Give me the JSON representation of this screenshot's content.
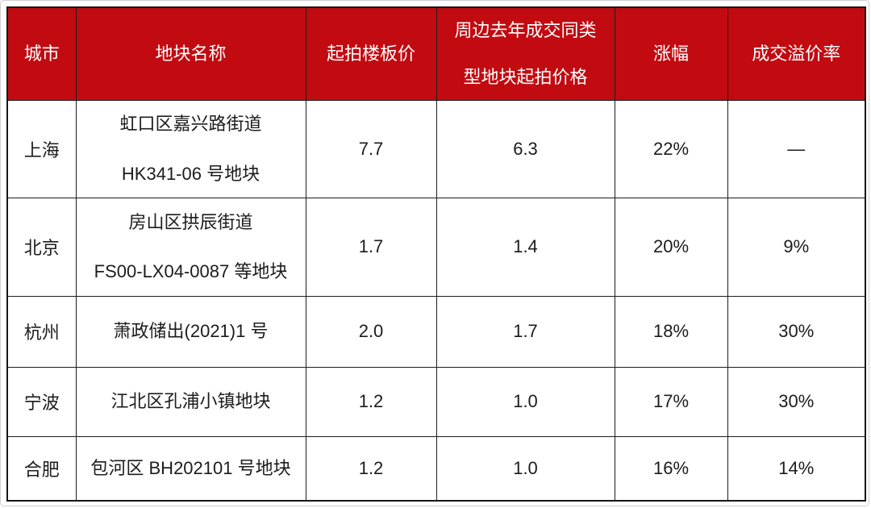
{
  "accent_color": "#C20B11",
  "header_text_color": "#FFFFFF",
  "body_text_color": "#1C1C1C",
  "table": {
    "header": [
      {
        "line1": "城市"
      },
      {
        "line1": "地块名称"
      },
      {
        "line1": "起拍楼板价"
      },
      {
        "line1": "周边去年成交同类",
        "line2": "型地块起拍价格"
      },
      {
        "line1": "涨幅"
      },
      {
        "line1": "成交溢价率"
      }
    ],
    "rows": [
      {
        "city": "上海",
        "plot_line1": "虹口区嘉兴路街道",
        "plot_line2": "HK341-06 号地块",
        "start_floor_price": "7.7",
        "nearby_last_year_price": "6.3",
        "increase": "22%",
        "premium_rate": "—"
      },
      {
        "city": "北京",
        "plot_line1": "房山区拱辰街道",
        "plot_line2": "FS00-LX04-0087 等地块",
        "start_floor_price": "1.7",
        "nearby_last_year_price": "1.4",
        "increase": "20%",
        "premium_rate": "9%"
      },
      {
        "city": "杭州",
        "plot_line1": "萧政储出(2021)1 号",
        "start_floor_price": "2.0",
        "nearby_last_year_price": "1.7",
        "increase": "18%",
        "premium_rate": "30%"
      },
      {
        "city": "宁波",
        "plot_line1": "江北区孔浦小镇地块",
        "start_floor_price": "1.2",
        "nearby_last_year_price": "1.0",
        "increase": "17%",
        "premium_rate": "30%"
      },
      {
        "city": "合肥",
        "plot_line1": "包河区 BH202101 号地块",
        "start_floor_price": "1.2",
        "nearby_last_year_price": "1.0",
        "increase": "16%",
        "premium_rate": "14%"
      }
    ]
  },
  "chart_data": {
    "type": "table",
    "title": "",
    "columns": [
      "城市",
      "地块名称",
      "起拍楼板价",
      "周边去年成交同类型地块起拍价格",
      "涨幅",
      "成交溢价率"
    ],
    "rows": [
      [
        "上海",
        "虹口区嘉兴路街道 HK341-06 号地块",
        7.7,
        6.3,
        "22%",
        "—"
      ],
      [
        "北京",
        "房山区拱辰街道 FS00-LX04-0087 等地块",
        1.7,
        1.4,
        "20%",
        "9%"
      ],
      [
        "杭州",
        "萧政储出(2021)1 号",
        2.0,
        1.7,
        "18%",
        "30%"
      ],
      [
        "宁波",
        "江北区孔浦小镇地块",
        1.2,
        1.0,
        "17%",
        "30%"
      ],
      [
        "合肥",
        "包河区 BH202101 号地块",
        1.2,
        1.0,
        "16%",
        "14%"
      ]
    ],
    "layout": {
      "header_bg": "#C20B11",
      "header_text_color": "#FFFFFF",
      "grid": "all-borders",
      "align": "center"
    }
  }
}
